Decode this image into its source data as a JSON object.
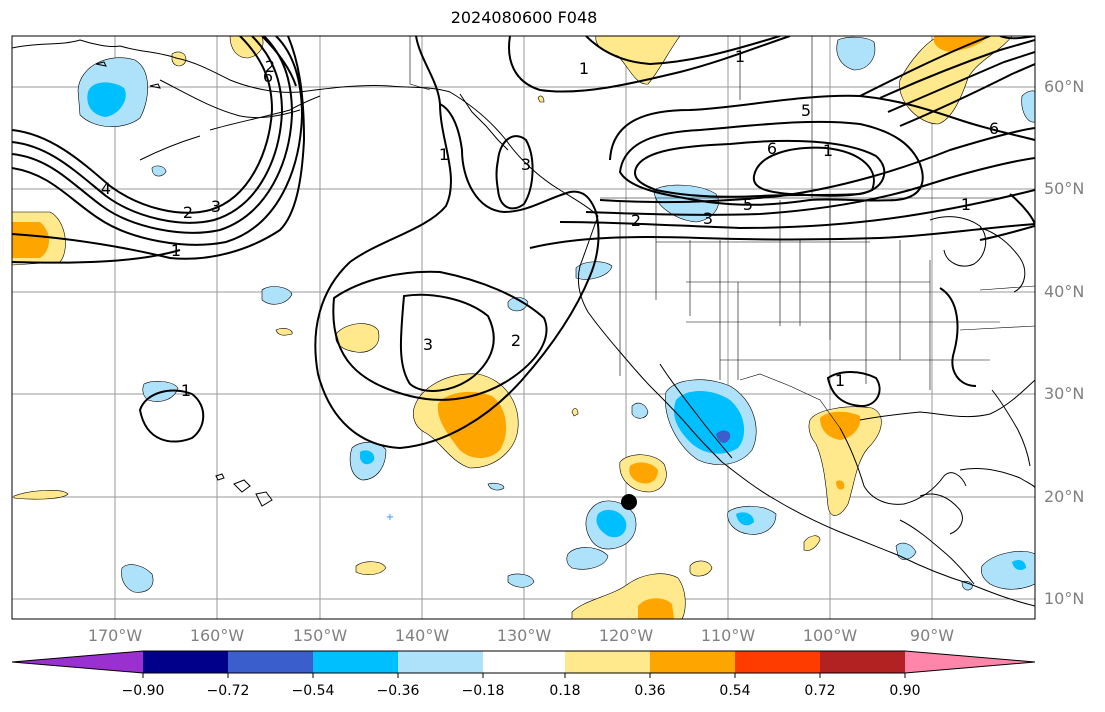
{
  "title": "2024080600 F048",
  "lat_labels": [
    "60°N",
    "50°N",
    "40°N",
    "30°N",
    "20°N",
    "10°N"
  ],
  "lon_labels": [
    "170°W",
    "160°W",
    "150°W",
    "140°W",
    "130°W",
    "120°W",
    "110°W",
    "100°W",
    "90°W"
  ],
  "colorbar": {
    "ticks": [
      "−0.90",
      "−0.72",
      "−0.54",
      "−0.36",
      "−0.18",
      "0.18",
      "0.36",
      "0.54",
      "0.72",
      "0.90"
    ],
    "colors": [
      "#9b30d0",
      "#00008b",
      "#3a5fcd",
      "#00bfff",
      "#aee2fb",
      "#ffffff",
      "#ffe98c",
      "#ffa500",
      "#ff3c00",
      "#b22222",
      "#ff86aa"
    ]
  },
  "contour_labels": [
    "1",
    "2",
    "3",
    "4",
    "1",
    "2",
    "3",
    "6",
    "1",
    "2",
    "3",
    "5",
    "6",
    "1",
    "3",
    "2",
    "1",
    "1",
    "1",
    "1",
    "5",
    "6"
  ],
  "map_colors": {
    "blue_light": "#aee2fb",
    "blue": "#00bfff",
    "blue_dark": "#3a5fcd",
    "yellow": "#ffe98c",
    "orange": "#ffa500"
  }
}
